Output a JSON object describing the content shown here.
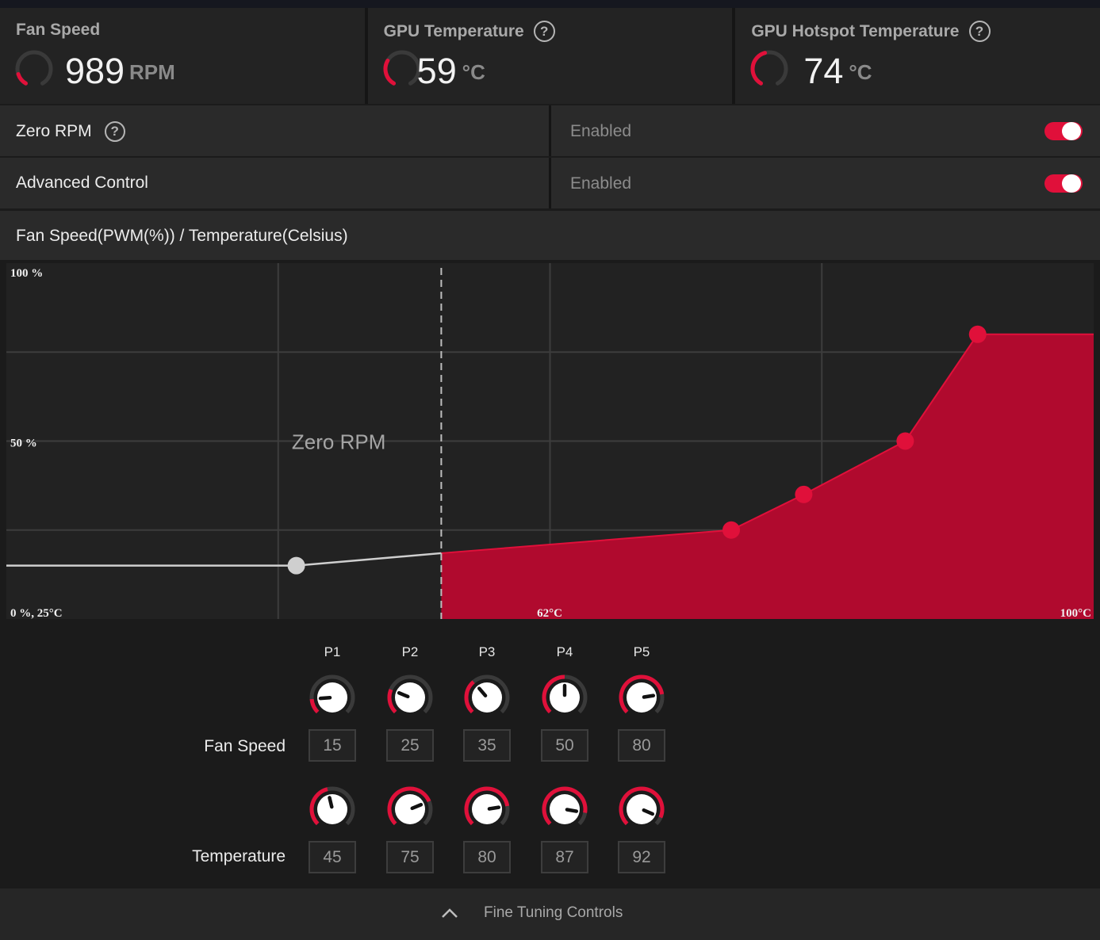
{
  "metrics": {
    "fan_speed": {
      "label": "Fan Speed",
      "value": "989",
      "unit": "RPM",
      "gauge_fraction": 0.14,
      "has_help": false
    },
    "gpu_temp": {
      "label": "GPU Temperature",
      "value": "59",
      "unit": "°C",
      "gauge_fraction": 0.3,
      "has_help": true
    },
    "hotspot_temp": {
      "label": "GPU Hotspot Temperature",
      "value": "74",
      "unit": "°C",
      "gauge_fraction": 0.45,
      "has_help": true
    }
  },
  "zero_rpm": {
    "label": "Zero RPM",
    "state": "Enabled",
    "on": true
  },
  "advanced_control": {
    "label": "Advanced Control",
    "state": "Enabled",
    "on": true
  },
  "chart_header": "Fan Speed(PWM(%)) / Temperature(Celsius)",
  "chart_data": {
    "type": "area",
    "title": "Fan Speed(PWM(%)) / Temperature(Celsius)",
    "tick_labels": {
      "y_top": "100 %",
      "y_mid": "50 %",
      "origin": "0 %, 25°C",
      "x_mid": "62°C",
      "x_max": "100°C"
    },
    "xlim": [
      25,
      100
    ],
    "ylim": [
      0,
      100
    ],
    "zero_rpm_label": "Zero RPM",
    "zero_rpm_threshold_temp": 55,
    "zero_rpm_segment": [
      {
        "x": 25,
        "y": 15
      },
      {
        "x": 45,
        "y": 15
      },
      {
        "x": 55,
        "y": 18.5
      }
    ],
    "curve": [
      {
        "x": 55,
        "y": 18.5
      },
      {
        "x": 75,
        "y": 25
      },
      {
        "x": 80,
        "y": 35
      },
      {
        "x": 87,
        "y": 50
      },
      {
        "x": 92,
        "y": 80
      },
      {
        "x": 100,
        "y": 80
      }
    ],
    "points": [
      {
        "name": "P1",
        "x": 45,
        "y": 15
      },
      {
        "name": "P2",
        "x": 75,
        "y": 25
      },
      {
        "name": "P3",
        "x": 80,
        "y": 35
      },
      {
        "name": "P4",
        "x": 87,
        "y": 50
      },
      {
        "name": "P5",
        "x": 92,
        "y": 80
      }
    ],
    "colors": {
      "fill": "#b00a2e",
      "line": "#e0103a",
      "zero_rpm_line": "#cfcfcf",
      "grid": "#3d3d3d"
    }
  },
  "fine_tuning": {
    "points": [
      "P1",
      "P2",
      "P3",
      "P4",
      "P5"
    ],
    "fan_speed_label": "Fan Speed",
    "temperature_label": "Temperature",
    "fan_speed": [
      "15",
      "25",
      "35",
      "50",
      "80"
    ],
    "temperature": [
      "45",
      "75",
      "80",
      "87",
      "92"
    ],
    "fan_speed_max": 100,
    "temperature_max": 100,
    "footer_label": "Fine Tuning Controls"
  },
  "colors": {
    "accent": "#e0103a",
    "panel": "#2a2a2a",
    "background": "#1b1b1b"
  }
}
